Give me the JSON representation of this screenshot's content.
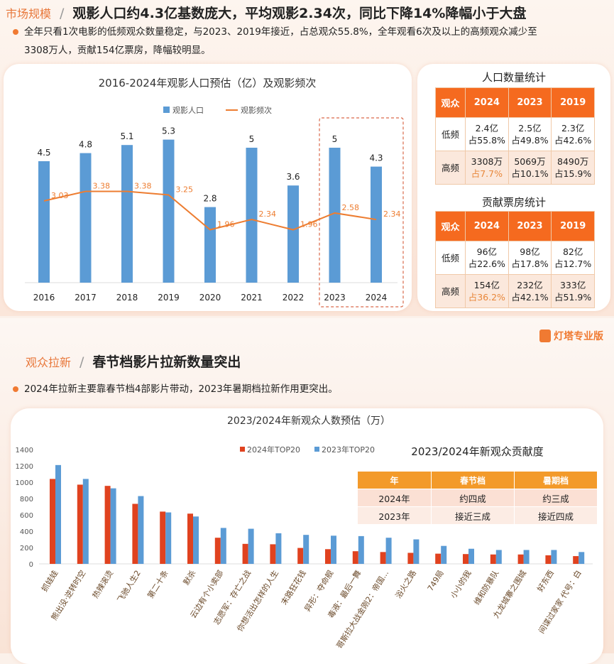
{
  "section1": {
    "tag": "市场规模",
    "sep": "/",
    "title": "观影人口约4.3亿基数庞大，平均观影2.34次，同比下降14%降幅小于大盘",
    "bullet": [
      "全年只看1次电影的低频观众数量稳定，与2023、2019年接近，占总观众55.8%，全年观看6次及以上的高频观众减少至",
      "3308万人，贡献154亿票房，降幅较明显。"
    ]
  },
  "population_table": {
    "title": "人口数量统计",
    "headers": [
      "观众",
      "2024",
      "2023",
      "2019"
    ],
    "rows": [
      {
        "label": "低频",
        "cells": [
          [
            "2.4亿",
            "占55.8%"
          ],
          [
            "2.5亿",
            "占49.8%"
          ],
          [
            "2.3亿",
            "占42.6%"
          ]
        ]
      },
      {
        "label": "高频",
        "cells": [
          [
            "3308万",
            "占7.7%"
          ],
          [
            "5069万",
            "占10.1%"
          ],
          [
            "8490万",
            "占15.9%"
          ]
        ]
      }
    ]
  },
  "boxoffice_table": {
    "title": "贡献票房统计",
    "headers": [
      "观众",
      "2024",
      "2023",
      "2019"
    ],
    "rows": [
      {
        "label": "低频",
        "cells": [
          [
            "96亿",
            "占22.6%"
          ],
          [
            "98亿",
            "占17.8%"
          ],
          [
            "82亿",
            "占12.7%"
          ]
        ]
      },
      {
        "label": "高频",
        "cells": [
          [
            "154亿",
            "占36.2%"
          ],
          [
            "232亿",
            "占42.1%"
          ],
          [
            "333亿",
            "占51.9%"
          ]
        ]
      }
    ]
  },
  "logo": "灯塔专业版",
  "section2": {
    "tag": "观众拉新",
    "sep": "/",
    "title": "春节档影片拉新数量突出",
    "bullet": "2024年拉新主要靠春节档4部影片带动，2023年暑期档拉新作用更突出。"
  },
  "contribution_table": {
    "title": "2023/2024年新观众贡献度",
    "headers": [
      "年",
      "春节档",
      "暑期档"
    ],
    "rows": [
      [
        "2024年",
        "约四成",
        "约三成"
      ],
      [
        "2023年",
        "接近三成",
        "接近四成"
      ]
    ]
  },
  "colors": {
    "bar_blue": "#5b9bd5",
    "line_orange": "#ed7d31",
    "red": "#e0421f",
    "accent": "#f56a1f"
  },
  "chart_data": [
    {
      "type": "bar+line",
      "title": "2016-2024年观影人口预估（亿）及观影频次",
      "categories": [
        "2016",
        "2017",
        "2018",
        "2019",
        "2020",
        "2021",
        "2022",
        "2023",
        "2024"
      ],
      "series": [
        {
          "name": "观影人口",
          "type": "bar",
          "values": [
            4.5,
            4.8,
            5.1,
            5.3,
            2.8,
            5.0,
            3.6,
            5.0,
            4.3
          ]
        },
        {
          "name": "观影频次",
          "type": "line",
          "values": [
            3.03,
            3.38,
            3.38,
            3.25,
            1.96,
            2.34,
            1.96,
            2.58,
            2.34
          ]
        }
      ],
      "highlight": [
        "2023",
        "2024"
      ],
      "legend": "top",
      "ylim": [
        0,
        6.3
      ]
    },
    {
      "type": "bar",
      "title": "2023/2024年新观众人数预估（万）",
      "categories": [
        "抓娃娃",
        "熊出没·逆转时空",
        "热辣滚烫",
        "飞驰人生2",
        "第二十条",
        "默杀",
        "云边有个小卖部",
        "志愿军：存亡之战",
        "你想活出怎样的人生",
        "末路狂花钱",
        "异形：夺命舰",
        "毒液：最后一舞",
        "哥斯拉大战金刚2：帝国...",
        "浴火之路",
        "749局",
        "小小的我",
        "维和防暴队",
        "九龙城寨之围城",
        "好东西",
        "间谍过家家 代号：白"
      ],
      "series": [
        {
          "name": "2024年TOP20",
          "values": [
            1040,
            970,
            955,
            735,
            640,
            615,
            320,
            245,
            240,
            195,
            180,
            155,
            145,
            135,
            125,
            120,
            115,
            115,
            105,
            95
          ]
        },
        {
          "name": "2023年TOP20",
          "values": [
            1210,
            1040,
            925,
            830,
            630,
            580,
            440,
            430,
            375,
            355,
            345,
            340,
            320,
            300,
            220,
            185,
            170,
            170,
            170,
            145
          ]
        }
      ],
      "yticks": [
        0,
        200,
        400,
        600,
        800,
        1000,
        1200,
        1400
      ],
      "ylim": [
        0,
        1400
      ],
      "legend": "top"
    }
  ]
}
